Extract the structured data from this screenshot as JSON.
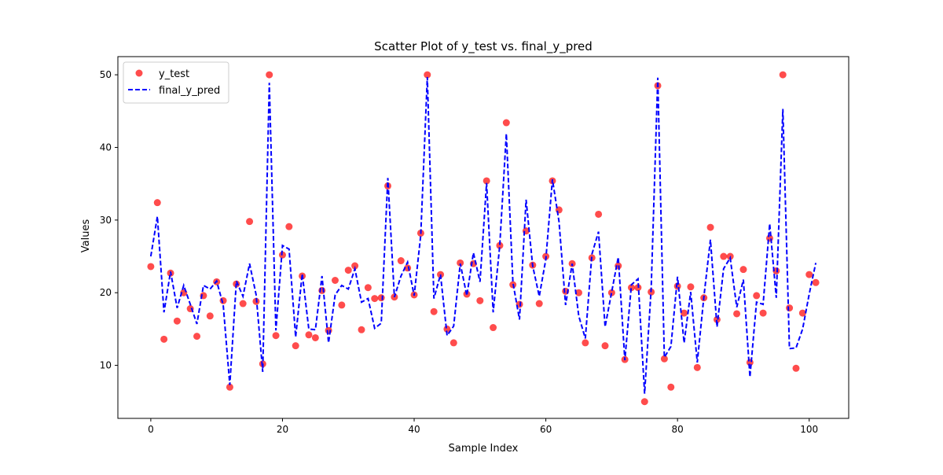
{
  "chart_data": {
    "type": "scatter",
    "title": "Scatter Plot of y_test vs. final_y_pred",
    "xlabel": "Sample Index",
    "ylabel": "Values",
    "xlim": [
      -5,
      106
    ],
    "ylim": [
      2.7,
      52.5
    ],
    "xticks": [
      0,
      20,
      40,
      60,
      80,
      100
    ],
    "yticks": [
      10,
      20,
      30,
      40,
      50
    ],
    "grid": false,
    "legend_position": "top-left",
    "series": [
      {
        "name": "y_test",
        "kind": "scatter",
        "color": "#ff0000",
        "x": [
          0,
          1,
          2,
          3,
          4,
          5,
          6,
          7,
          8,
          9,
          10,
          11,
          12,
          13,
          14,
          15,
          16,
          17,
          18,
          19,
          20,
          21,
          22,
          23,
          24,
          25,
          26,
          27,
          28,
          29,
          30,
          31,
          32,
          33,
          34,
          35,
          36,
          37,
          38,
          39,
          40,
          41,
          42,
          43,
          44,
          45,
          46,
          47,
          48,
          49,
          50,
          51,
          52,
          53,
          54,
          55,
          56,
          57,
          58,
          59,
          60,
          61,
          62,
          63,
          64,
          65,
          66,
          67,
          68,
          69,
          70,
          71,
          72,
          73,
          74,
          75,
          76,
          77,
          78,
          79,
          80,
          81,
          82,
          83,
          84,
          85,
          86,
          87,
          88,
          89,
          90,
          91,
          92,
          93,
          94,
          95,
          96,
          97,
          98,
          99,
          100,
          101
        ],
        "y": [
          23.6,
          32.4,
          13.6,
          22.7,
          16.1,
          20.0,
          17.8,
          14.0,
          19.6,
          16.8,
          21.5,
          18.9,
          7.0,
          21.2,
          18.5,
          29.8,
          18.8,
          10.2,
          50.0,
          14.1,
          25.2,
          29.1,
          12.7,
          22.3,
          14.2,
          13.8,
          20.3,
          14.8,
          21.7,
          18.3,
          23.1,
          23.7,
          14.9,
          20.7,
          19.2,
          19.3,
          34.7,
          19.4,
          24.4,
          23.4,
          19.7,
          28.2,
          50.0,
          17.4,
          22.5,
          15.0,
          13.1,
          24.1,
          19.8,
          24.0,
          18.9,
          35.4,
          15.2,
          26.5,
          43.4,
          21.1,
          18.4,
          28.5,
          23.8,
          18.5,
          25.0,
          35.4,
          31.4,
          20.2,
          24.0,
          20.0,
          13.1,
          24.8,
          30.8,
          12.7,
          20.0,
          23.7,
          10.8,
          20.7,
          20.7,
          5.0,
          20.1,
          48.5,
          10.9,
          7.0,
          20.9,
          17.2,
          20.8,
          9.7,
          19.3,
          29.0,
          16.3,
          25.0,
          25.0,
          17.1,
          23.2,
          10.4,
          19.6,
          17.2,
          27.5,
          23.0,
          50.0,
          17.9,
          9.6,
          17.2,
          22.5,
          21.4
        ]
      },
      {
        "name": "final_y_pred",
        "kind": "line",
        "color": "#0000ff",
        "x": [
          0,
          1,
          2,
          3,
          4,
          5,
          6,
          7,
          8,
          9,
          10,
          11,
          12,
          13,
          14,
          15,
          16,
          17,
          18,
          19,
          20,
          21,
          22,
          23,
          24,
          25,
          26,
          27,
          28,
          29,
          30,
          31,
          32,
          33,
          34,
          35,
          36,
          37,
          38,
          39,
          40,
          41,
          42,
          43,
          44,
          45,
          46,
          47,
          48,
          49,
          50,
          51,
          52,
          53,
          54,
          55,
          56,
          57,
          58,
          59,
          60,
          61,
          62,
          63,
          64,
          65,
          66,
          67,
          68,
          69,
          70,
          71,
          72,
          73,
          74,
          75,
          76,
          77,
          78,
          79,
          80,
          81,
          82,
          83,
          84,
          85,
          86,
          87,
          88,
          89,
          90,
          91,
          92,
          93,
          94,
          95,
          96,
          97,
          98,
          99,
          100,
          101
        ],
        "y": [
          25.0,
          30.5,
          17.3,
          22.9,
          17.9,
          21.0,
          18.4,
          15.7,
          21.0,
          20.5,
          21.6,
          18.3,
          7.3,
          21.6,
          19.5,
          24.0,
          19.7,
          9.1,
          48.9,
          14.8,
          26.5,
          26.0,
          13.9,
          22.6,
          15.0,
          14.9,
          22.3,
          13.1,
          19.7,
          21.0,
          20.5,
          23.3,
          18.7,
          19.2,
          15.1,
          15.8,
          35.8,
          19.4,
          22.3,
          24.2,
          19.6,
          27.9,
          49.7,
          19.2,
          22.5,
          14.1,
          15.4,
          24.0,
          19.6,
          25.5,
          21.5,
          35.1,
          17.3,
          26.5,
          41.9,
          21.4,
          16.3,
          32.8,
          23.7,
          19.5,
          24.6,
          35.6,
          29.8,
          18.3,
          24.0,
          16.8,
          13.7,
          25.3,
          28.4,
          15.3,
          20.1,
          24.9,
          10.7,
          21.1,
          21.9,
          6.1,
          20.6,
          49.6,
          11.1,
          12.6,
          22.2,
          13.1,
          20.1,
          10.4,
          19.4,
          27.3,
          15.3,
          23.3,
          24.8,
          18.0,
          21.8,
          8.4,
          18.7,
          18.4,
          29.5,
          19.3,
          45.3,
          12.3,
          12.4,
          15.0,
          19.8,
          24.1
        ]
      }
    ]
  }
}
